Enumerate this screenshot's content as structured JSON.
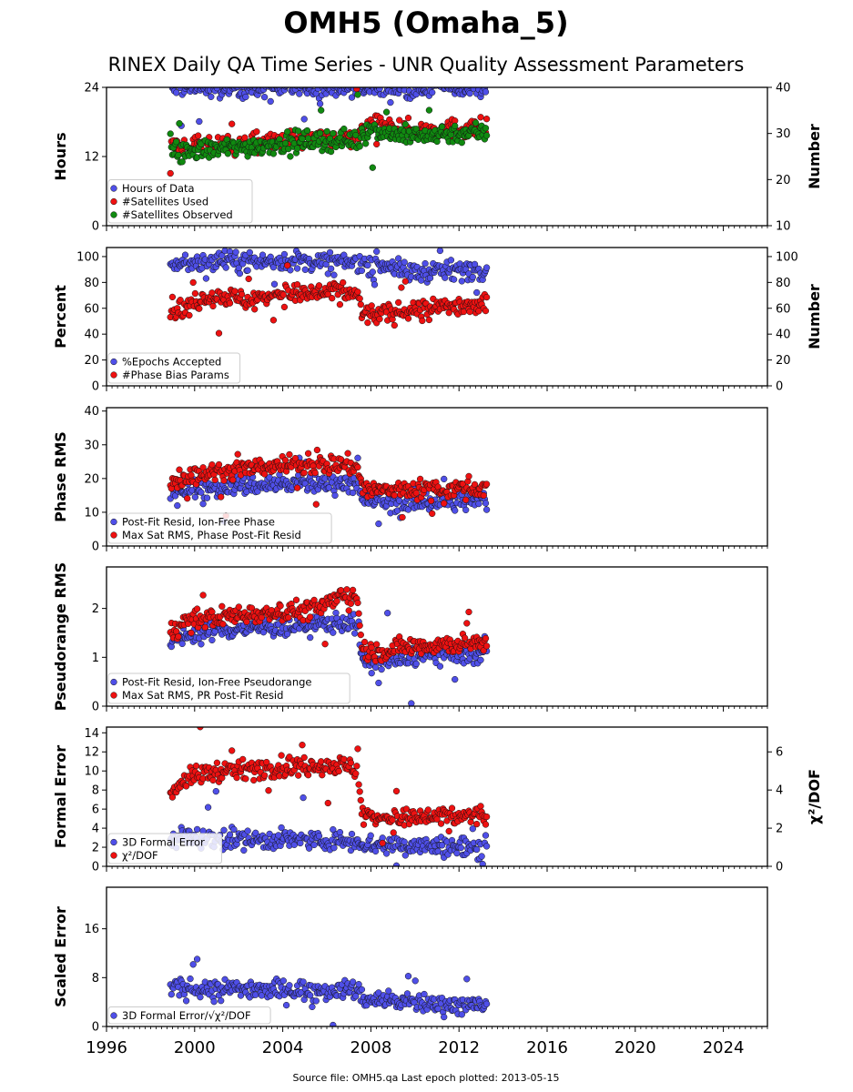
{
  "title": "OMH5 (Omaha_5)",
  "subtitle": "RINEX Daily QA Time Series - UNR Quality Assessment Parameters",
  "footer": "Source file: OMH5.qa Last epoch plotted: 2013-05-15",
  "colors": {
    "blue": "#4f4fe8",
    "red": "#ee1111",
    "green": "#108a10",
    "edge": "#111111"
  },
  "chart_data": [
    {
      "type": "scatter",
      "xlim": [
        1996,
        2026
      ],
      "x_ticks": [
        1996,
        2000,
        2004,
        2008,
        2012,
        2016,
        2020,
        2024
      ],
      "ylabel": "Hours",
      "ylim": [
        0,
        24
      ],
      "yticks": [
        0,
        12,
        24
      ],
      "ylabel_right": "Number",
      "ylim_right": [
        10,
        40
      ],
      "yticks_right": [
        10,
        20,
        30,
        40
      ],
      "legend": [
        "Hours of Data",
        "#Satellites Used",
        "#Satellites Observed"
      ],
      "legend_placement": "lower-left",
      "series": [
        {
          "name": "Hours of Data",
          "axis": "left",
          "x": [
            1998.9,
            1999.5,
            2000.2,
            2001.0,
            2001.8,
            2002.6,
            2003.4,
            2004.2,
            2005.0,
            2005.8,
            2006.6,
            2007.4,
            2007.6,
            2008.2,
            2008.9,
            2009.5,
            2010.2,
            2010.9,
            2011.6,
            2012.3,
            2013.0,
            2013.3
          ],
          "y": [
            23.8,
            23.9,
            23.9,
            23.8,
            23.9,
            23.8,
            23.9,
            23.9,
            23.9,
            23.8,
            23.9,
            23.9,
            23.8,
            23.9,
            23.8,
            23.9,
            23.9,
            23.9,
            23.8,
            23.9,
            23.9,
            23.8
          ]
        },
        {
          "name": "#Satellites Used",
          "axis": "right",
          "x": [
            1998.9,
            1999.5,
            2000.2,
            2001.0,
            2001.8,
            2002.6,
            2003.4,
            2004.2,
            2005.0,
            2005.8,
            2006.6,
            2007.4,
            2007.6,
            2008.2,
            2008.9,
            2009.5,
            2010.2,
            2010.9,
            2011.6,
            2012.3,
            2013.0,
            2013.3
          ],
          "y": [
            27.2,
            27.0,
            27.3,
            27.4,
            27.6,
            27.8,
            28.0,
            28.4,
            28.6,
            28.7,
            28.8,
            28.9,
            31.6,
            31.5,
            31.4,
            30.8,
            30.6,
            30.9,
            31.0,
            31.1,
            31.2,
            31.1
          ]
        },
        {
          "name": "#Satellites Observed",
          "axis": "right",
          "x": [
            1998.9,
            1999.5,
            2000.2,
            2001.0,
            2001.8,
            2002.6,
            2003.4,
            2004.2,
            2005.0,
            2005.8,
            2006.6,
            2007.4,
            2007.6,
            2008.2,
            2008.9,
            2009.5,
            2010.2,
            2010.9,
            2011.6,
            2012.3,
            2013.0,
            2013.3
          ],
          "y": [
            26.5,
            26.0,
            26.3,
            26.6,
            26.9,
            27.2,
            27.6,
            28.0,
            28.3,
            28.5,
            28.6,
            28.7,
            30.2,
            30.4,
            30.2,
            29.6,
            29.5,
            29.9,
            30.0,
            30.2,
            30.3,
            30.1
          ]
        }
      ]
    },
    {
      "type": "scatter",
      "xlim": [
        1996,
        2026
      ],
      "ylabel": "Percent",
      "ylim": [
        0,
        107
      ],
      "yticks": [
        0,
        20,
        40,
        60,
        80,
        100
      ],
      "ylabel_right": "Number",
      "ylim_right": [
        0,
        107
      ],
      "yticks_right": [
        0,
        20,
        40,
        60,
        80,
        100
      ],
      "legend": [
        "%Epochs Accepted",
        "#Phase Bias Params"
      ],
      "legend_placement": "lower-left",
      "series": [
        {
          "name": "%Epochs Accepted",
          "axis": "left",
          "x": [
            1998.9,
            1999.5,
            2000.2,
            2001.0,
            2001.8,
            2002.6,
            2003.4,
            2004.2,
            2005.0,
            2005.8,
            2006.6,
            2007.4,
            2007.6,
            2008.2,
            2008.9,
            2009.5,
            2010.2,
            2010.9,
            2011.6,
            2012.3,
            2013.0,
            2013.3
          ],
          "y": [
            95,
            96,
            96,
            97,
            96,
            97,
            96,
            97,
            96,
            96,
            95,
            96,
            95,
            95,
            93,
            88,
            88,
            89,
            89,
            90,
            90,
            90
          ]
        },
        {
          "name": "#Phase Bias Params",
          "axis": "right",
          "x": [
            1998.9,
            1999.5,
            2000.2,
            2001.0,
            2001.8,
            2002.6,
            2003.4,
            2004.2,
            2005.0,
            2005.8,
            2006.6,
            2007.4,
            2007.6,
            2008.2,
            2008.9,
            2009.5,
            2010.2,
            2010.9,
            2011.6,
            2012.3,
            2013.0,
            2013.3
          ],
          "y": [
            60,
            58,
            66,
            70,
            68,
            66,
            70,
            72,
            70,
            72,
            74,
            70,
            56,
            55,
            56,
            58,
            60,
            60,
            62,
            62,
            63,
            62
          ]
        }
      ]
    },
    {
      "type": "scatter",
      "xlim": [
        1996,
        2026
      ],
      "ylabel": "Phase RMS",
      "ylim": [
        0,
        41
      ],
      "yticks": [
        0,
        10,
        20,
        30,
        40
      ],
      "legend": [
        "Post-Fit Resid, Ion-Free Phase",
        "Max Sat RMS, Phase Post-Fit Resid"
      ],
      "legend_placement": "lower-left",
      "series": [
        {
          "name": "Post-Fit Resid, Ion-Free Phase",
          "x": [
            1998.9,
            1999.5,
            2000.2,
            2001.0,
            2001.8,
            2002.6,
            2003.4,
            2004.2,
            2005.0,
            2005.8,
            2006.6,
            2007.4,
            2007.6,
            2008.2,
            2008.9,
            2009.5,
            2010.2,
            2010.9,
            2011.6,
            2012.3,
            2013.0,
            2013.3
          ],
          "y": [
            16,
            17,
            17.5,
            17.5,
            17.8,
            18,
            18.2,
            18.3,
            18.5,
            18.6,
            18.8,
            18.5,
            13.5,
            13.2,
            13,
            13,
            13.2,
            13.3,
            13.2,
            13.4,
            13.3,
            13.2
          ]
        },
        {
          "name": "Max Sat RMS, Phase Post-Fit Resid",
          "x": [
            1998.9,
            1999.5,
            2000.2,
            2001.0,
            2001.8,
            2002.6,
            2003.4,
            2004.2,
            2005.0,
            2005.8,
            2006.6,
            2007.4,
            2007.6,
            2008.2,
            2008.9,
            2009.5,
            2010.2,
            2010.9,
            2011.6,
            2012.3,
            2013.0,
            2013.3
          ],
          "y": [
            19,
            20,
            21.5,
            22,
            22.5,
            23,
            23.5,
            24,
            24,
            24,
            24.2,
            23.5,
            17,
            16.5,
            16.5,
            16.8,
            17,
            17.2,
            17,
            17.2,
            17.5,
            17
          ]
        }
      ]
    },
    {
      "type": "scatter",
      "xlim": [
        1996,
        2026
      ],
      "ylabel": "Pseudorange RMS",
      "ylim": [
        0,
        2.85
      ],
      "yticks": [
        0,
        1,
        2
      ],
      "legend": [
        "Post-Fit Resid, Ion-Free Pseudorange",
        "Max Sat RMS, PR Post-Fit Resid"
      ],
      "legend_placement": "lower-left",
      "series": [
        {
          "name": "Post-Fit Resid, Ion-Free Pseudorange",
          "x": [
            1998.9,
            1999.5,
            2000.2,
            2001.0,
            2001.8,
            2002.6,
            2003.4,
            2004.2,
            2005.0,
            2005.8,
            2006.6,
            2007.4,
            2007.6,
            2008.2,
            2008.9,
            2009.5,
            2010.2,
            2010.9,
            2011.6,
            2012.3,
            2013.0,
            2013.3
          ],
          "y": [
            1.3,
            1.45,
            1.5,
            1.55,
            1.58,
            1.6,
            1.62,
            1.64,
            1.66,
            1.68,
            1.72,
            1.7,
            0.9,
            0.88,
            0.9,
            1.0,
            1.02,
            1.04,
            1.05,
            1.05,
            1.06,
            1.05
          ]
        },
        {
          "name": "Max Sat RMS, PR Post-Fit Resid",
          "x": [
            1998.9,
            1999.5,
            2000.2,
            2001.0,
            2001.8,
            2002.6,
            2003.4,
            2004.2,
            2005.0,
            2005.8,
            2006.6,
            2007.4,
            2007.6,
            2008.2,
            2008.9,
            2009.5,
            2010.2,
            2010.9,
            2011.6,
            2012.3,
            2013.0,
            2013.3
          ],
          "y": [
            1.55,
            1.7,
            1.78,
            1.82,
            1.86,
            1.9,
            1.92,
            1.95,
            1.97,
            2.0,
            2.3,
            2.2,
            1.15,
            1.12,
            1.15,
            1.22,
            1.24,
            1.26,
            1.27,
            1.28,
            1.28,
            1.26
          ]
        }
      ]
    },
    {
      "type": "scatter",
      "xlim": [
        1996,
        2026
      ],
      "ylabel": "Formal Error",
      "ylim": [
        0,
        14.6
      ],
      "yticks": [
        0,
        2,
        4,
        6,
        8,
        10,
        12,
        14
      ],
      "ylabel_right": "χ²/DOF",
      "ylim_right": [
        0,
        7.3
      ],
      "yticks_right": [
        0,
        2,
        4,
        6
      ],
      "legend": [
        "3D Formal Error",
        "χ²/DOF"
      ],
      "legend_placement": "lower-left",
      "series": [
        {
          "name": "3D Formal Error",
          "axis": "left",
          "x": [
            1998.9,
            1999.5,
            2000.2,
            2001.0,
            2001.8,
            2002.6,
            2003.4,
            2004.2,
            2005.0,
            2005.8,
            2006.6,
            2007.4,
            2007.6,
            2008.2,
            2008.9,
            2009.5,
            2010.2,
            2010.9,
            2011.6,
            2012.3,
            2013.0,
            2013.3
          ],
          "y": [
            3.0,
            3.1,
            3.0,
            2.9,
            2.9,
            2.8,
            2.8,
            2.8,
            2.7,
            2.7,
            2.7,
            2.7,
            2.4,
            2.3,
            2.3,
            2.2,
            2.2,
            2.1,
            2.0,
            2.0,
            2.0,
            2.0
          ]
        },
        {
          "name": "χ²/DOF",
          "axis": "right",
          "x": [
            1998.9,
            1999.5,
            2000.2,
            2001.0,
            2001.8,
            2002.6,
            2003.4,
            2004.2,
            2005.0,
            2005.8,
            2006.6,
            2007.4,
            2007.6,
            2008.2,
            2008.9,
            2009.5,
            2010.2,
            2010.9,
            2011.6,
            2012.3,
            2013.0,
            2013.3
          ],
          "y": [
            3.9,
            4.5,
            4.8,
            5.0,
            5.0,
            5.1,
            5.2,
            5.2,
            5.2,
            5.3,
            5.3,
            5.1,
            2.7,
            2.6,
            2.5,
            2.5,
            2.5,
            2.6,
            2.6,
            2.6,
            2.7,
            2.6
          ]
        }
      ]
    },
    {
      "type": "scatter",
      "xlim": [
        1996,
        2026
      ],
      "ylabel": "Scaled Error",
      "ylim": [
        0,
        22.8
      ],
      "yticks": [
        0,
        8,
        16
      ],
      "legend": [
        "3D Formal Error/√χ²/DOF"
      ],
      "legend_placement": "lower-left",
      "series": [
        {
          "name": "3D Formal Error/√χ²/DOF",
          "x": [
            1998.9,
            1999.5,
            2000.2,
            2001.0,
            2001.8,
            2002.6,
            2003.4,
            2004.2,
            2005.0,
            2005.8,
            2006.6,
            2007.4,
            2007.6,
            2008.2,
            2008.9,
            2009.5,
            2010.2,
            2010.9,
            2011.6,
            2012.3,
            2013.0,
            2013.3
          ],
          "y": [
            6.0,
            6.3,
            6.2,
            6.1,
            6.2,
            6.2,
            6.1,
            6.0,
            6.0,
            6.0,
            6.0,
            6.0,
            4.6,
            4.4,
            4.2,
            4.0,
            3.9,
            3.7,
            3.6,
            3.5,
            3.4,
            3.4
          ]
        }
      ]
    }
  ]
}
